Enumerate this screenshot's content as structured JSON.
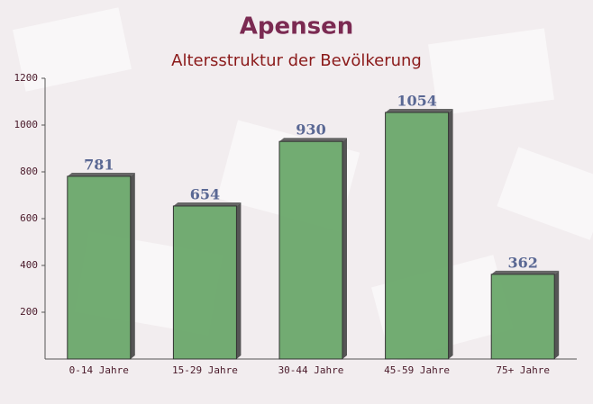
{
  "chart_data": {
    "type": "bar",
    "title": "Apensen",
    "subtitle": "Altersstruktur der Bevölkerung",
    "categories": [
      "0-14 Jahre",
      "15-29 Jahre",
      "30-44 Jahre",
      "45-59 Jahre",
      "75+ Jahre"
    ],
    "values": [
      781,
      654,
      930,
      1054,
      362
    ],
    "color": "#6aa86a",
    "ylim": [
      0,
      1200
    ],
    "yticks": [
      200,
      400,
      600,
      800,
      1000,
      1200
    ],
    "grid": false
  }
}
